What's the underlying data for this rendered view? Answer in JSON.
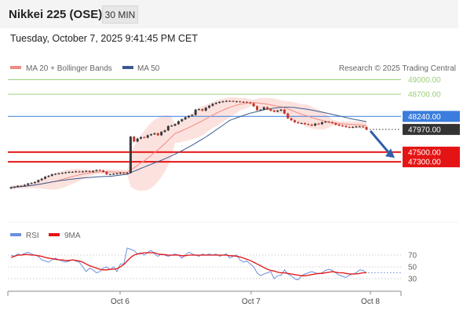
{
  "header": {
    "title": "Nikkei 225 (OSE)",
    "timeframe": "30 MIN",
    "datetime": "Tuesday, October 7, 2025 9:41:45 PM CET"
  },
  "legend": {
    "ma20": "MA 20 + Bollinger Bands",
    "ma50": "MA 50",
    "credit": "Research © 2025 Trading Central",
    "rsi": "RSI",
    "rsi_ma": "9MA"
  },
  "colors": {
    "ma20": "#f08a84",
    "ma50": "#3d5a8e",
    "bollinger_fill": "#fbd8d3",
    "resistance": "#9cd07a",
    "pivot": "#3b7ddd",
    "support": "#e51414",
    "current": "#333333",
    "rsi": "#6a8ee0",
    "rsi_ma": "#e51414"
  },
  "chart_data": [
    {
      "type": "candlestick",
      "title": "",
      "x_ticks": [
        "Oct 6",
        "Oct 7",
        "Oct 8"
      ],
      "ylim": [
        46050,
        49350
      ],
      "levels": [
        {
          "label": "49000.00",
          "value": 49000,
          "kind": "resistance"
        },
        {
          "label": "48700.00",
          "value": 48700,
          "kind": "resistance"
        },
        {
          "label": "48240.00",
          "value": 48240,
          "kind": "pivot"
        },
        {
          "label": "47970.00",
          "value": 47970,
          "kind": "current"
        },
        {
          "label": "47500.00",
          "value": 47500,
          "kind": "support"
        },
        {
          "label": "47300.00",
          "value": 47300,
          "kind": "support"
        }
      ],
      "close": [
        46770,
        46780,
        46800,
        46800,
        46820,
        46850,
        46860,
        46880,
        46920,
        46950,
        46990,
        47010,
        47040,
        47050,
        47060,
        47070,
        47080,
        47090,
        47090,
        47100,
        47090,
        47100,
        47110,
        47090,
        47110,
        47130,
        47120,
        47090,
        47040,
        47040,
        47050,
        47060,
        47070,
        47060,
        47070,
        47820,
        47720,
        47780,
        47810,
        47800,
        47850,
        47870,
        47890,
        47850,
        47920,
        47950,
        48040,
        48050,
        48080,
        48140,
        48180,
        48220,
        48250,
        48270,
        48380,
        48390,
        48360,
        48420,
        48460,
        48500,
        48520,
        48540,
        48550,
        48560,
        48560,
        48550,
        48550,
        48540,
        48540,
        48530,
        48510,
        48450,
        48370,
        48380,
        48430,
        48390,
        48360,
        48340,
        48360,
        48380,
        48300,
        48200,
        48160,
        48120,
        48100,
        48100,
        48080,
        48070,
        48050,
        48090,
        48080,
        48120,
        48130,
        48120,
        48100,
        48070,
        48050,
        48040,
        48020,
        48010,
        48020,
        48030,
        48030,
        48020,
        47970
      ],
      "ma20_start": [
        46790,
        47020
      ],
      "ma50_start": [
        46600,
        46950
      ],
      "rsi": {
        "levels": [
          70,
          50,
          30
        ],
        "ylim": [
          10,
          90
        ],
        "rsi_values": [
          70,
          68,
          72,
          70,
          73,
          75,
          72,
          70,
          68,
          62,
          60,
          58,
          62,
          65,
          62,
          60,
          58,
          60,
          62,
          60,
          58,
          50,
          42,
          48,
          45,
          40,
          42,
          48,
          50,
          45,
          50,
          42,
          55,
          55,
          82,
          80,
          78,
          72,
          74,
          70,
          75,
          78,
          72,
          68,
          72,
          70,
          68,
          70,
          72,
          70,
          65,
          70,
          75,
          72,
          70,
          68,
          72,
          70,
          72,
          70,
          72,
          68,
          70,
          72,
          65,
          68,
          70,
          62,
          58,
          60,
          55,
          50,
          40,
          35,
          38,
          40,
          42,
          30,
          35,
          36,
          45,
          38,
          35,
          30,
          28,
          35,
          38,
          40,
          42,
          40,
          38,
          40,
          44,
          46,
          44,
          40,
          36,
          34,
          32,
          36,
          38,
          40,
          45,
          44,
          40
        ],
        "ma9_values": [
          66,
          68,
          70,
          70,
          71,
          71,
          70,
          70,
          69,
          68,
          66,
          65,
          64,
          63,
          62,
          62,
          61,
          61,
          62,
          61,
          60,
          58,
          55,
          52,
          50,
          48,
          46,
          45,
          45,
          46,
          46,
          47,
          50,
          54,
          60,
          66,
          70,
          72,
          73,
          74,
          74,
          74,
          74,
          72,
          71,
          71,
          70,
          70,
          70,
          70,
          69,
          69,
          70,
          70,
          70,
          70,
          70,
          70,
          70,
          70,
          70,
          70,
          70,
          70,
          69,
          69,
          68,
          67,
          65,
          63,
          61,
          58,
          55,
          52,
          49,
          46,
          44,
          43,
          41,
          40,
          40,
          39,
          38,
          37,
          36,
          35,
          35,
          36,
          37,
          38,
          39,
          39,
          40,
          41,
          42,
          41,
          40,
          40,
          39,
          38,
          38,
          38,
          39,
          40,
          40
        ]
      }
    }
  ]
}
